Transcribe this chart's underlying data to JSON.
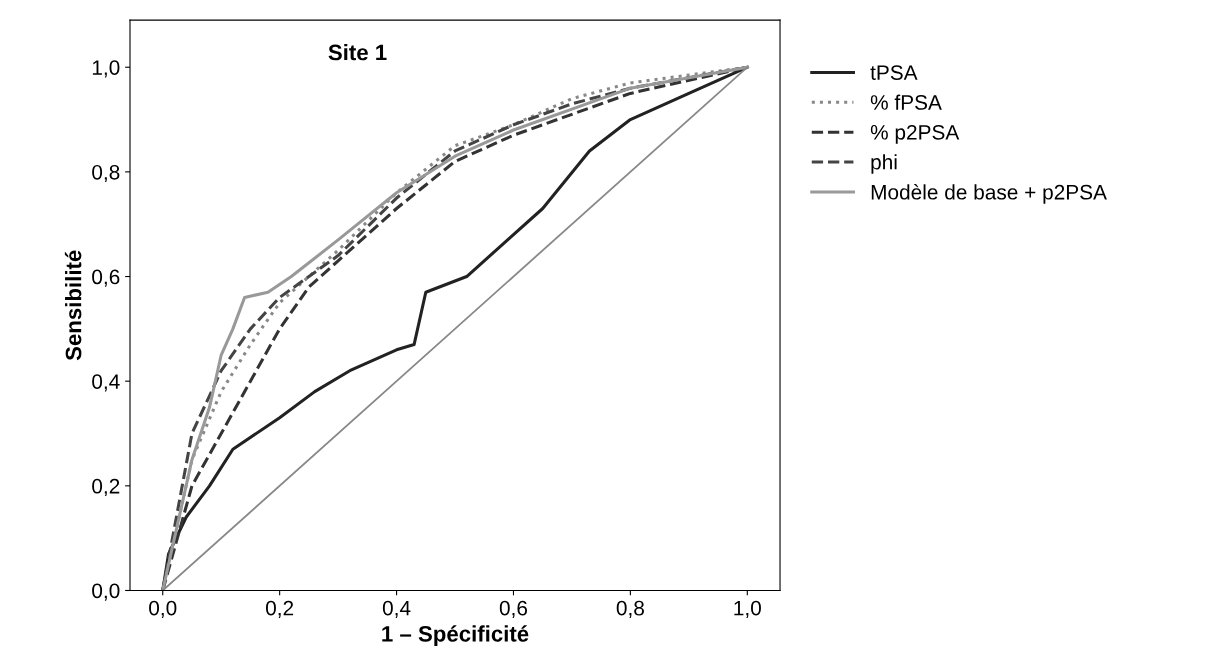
{
  "chart_data": {
    "type": "line",
    "title": "Site 1",
    "xlabel": "1 – Spécificité",
    "ylabel": "Sensibilité",
    "xlim": [
      -0.056,
      1.056
    ],
    "ylim": [
      0,
      1.09
    ],
    "xticks": [
      {
        "value": 0,
        "label": "0,0"
      },
      {
        "value": 0.2,
        "label": "0,2"
      },
      {
        "value": 0.4,
        "label": "0,4"
      },
      {
        "value": 0.6,
        "label": "0,6"
      },
      {
        "value": 0.8,
        "label": "0,8"
      },
      {
        "value": 1,
        "label": "1,0"
      }
    ],
    "yticks": [
      {
        "value": 0,
        "label": "0,0"
      },
      {
        "value": 0.2,
        "label": "0,2"
      },
      {
        "value": 0.4,
        "label": "0,4"
      },
      {
        "value": 0.6,
        "label": "0,6"
      },
      {
        "value": 0.8,
        "label": "0,8"
      },
      {
        "value": 1,
        "label": "1,0"
      }
    ],
    "grid": false,
    "legend": "right",
    "marker": "none",
    "series": [
      {
        "name": "tPSA",
        "color": "#222222",
        "line_style": "solid",
        "x": [
          0,
          0.01,
          0.04,
          0.08,
          0.12,
          0.2,
          0.26,
          0.32,
          0.4,
          0.43,
          0.45,
          0.52,
          0.59,
          0.65,
          0.73,
          0.8,
          0.9,
          1
        ],
        "values": [
          0,
          0.07,
          0.14,
          0.2,
          0.27,
          0.33,
          0.38,
          0.42,
          0.46,
          0.47,
          0.57,
          0.6,
          0.67,
          0.73,
          0.84,
          0.9,
          0.95,
          1
        ]
      },
      {
        "name": "% fPSA",
        "color": "#888888",
        "line_style": "dotted",
        "x": [
          0,
          0.02,
          0.05,
          0.1,
          0.15,
          0.2,
          0.3,
          0.4,
          0.5,
          0.6,
          0.7,
          0.8,
          1
        ],
        "values": [
          0,
          0.1,
          0.25,
          0.38,
          0.47,
          0.55,
          0.65,
          0.76,
          0.85,
          0.89,
          0.94,
          0.97,
          1
        ]
      },
      {
        "name": "% p2PSA",
        "color": "#333333",
        "line_style": "dashed",
        "x": [
          0,
          0.02,
          0.05,
          0.1,
          0.15,
          0.2,
          0.25,
          0.3,
          0.4,
          0.5,
          0.6,
          0.7,
          0.8,
          1
        ],
        "values": [
          0,
          0.08,
          0.2,
          0.3,
          0.4,
          0.5,
          0.58,
          0.63,
          0.73,
          0.82,
          0.87,
          0.91,
          0.95,
          1
        ]
      },
      {
        "name": "phi",
        "color": "#444444",
        "line_style": "dashed",
        "x": [
          0,
          0.02,
          0.05,
          0.1,
          0.15,
          0.2,
          0.3,
          0.4,
          0.5,
          0.6,
          0.7,
          0.8,
          1
        ],
        "values": [
          0,
          0.12,
          0.3,
          0.42,
          0.5,
          0.56,
          0.64,
          0.75,
          0.84,
          0.89,
          0.93,
          0.96,
          1
        ]
      },
      {
        "name": "Modèle de base + p2PSA",
        "color": "#999999",
        "line_style": "solid",
        "x": [
          0,
          0.02,
          0.05,
          0.08,
          0.1,
          0.12,
          0.14,
          0.18,
          0.22,
          0.3,
          0.4,
          0.5,
          0.6,
          0.7,
          0.8,
          1
        ],
        "values": [
          0,
          0.1,
          0.25,
          0.35,
          0.45,
          0.5,
          0.56,
          0.57,
          0.6,
          0.67,
          0.76,
          0.83,
          0.88,
          0.92,
          0.96,
          1
        ]
      },
      {
        "color": "#888888",
        "line_style": "solid",
        "x": [
          0,
          1
        ],
        "values": [
          0,
          1
        ]
      }
    ]
  }
}
